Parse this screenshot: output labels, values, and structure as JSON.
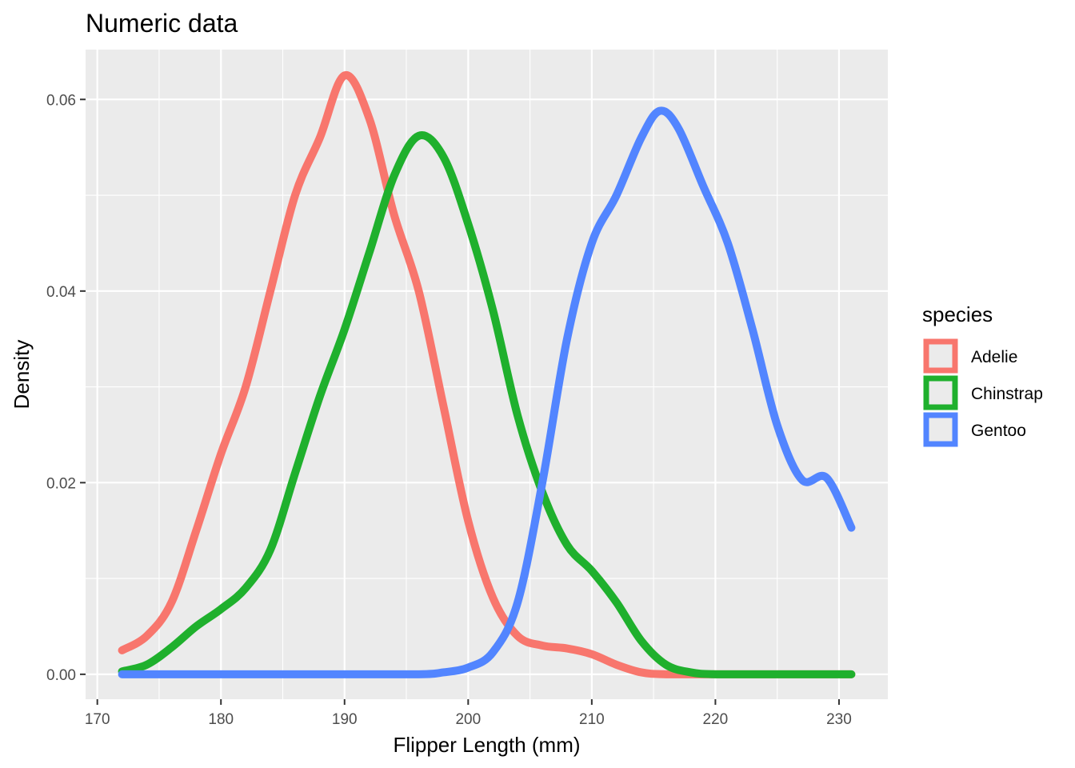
{
  "chart_data": {
    "type": "line",
    "title": "Numeric data",
    "xlabel": "Flipper Length (mm)",
    "ylabel": "Density",
    "xlim": [
      169.05,
      233.95
    ],
    "ylim": [
      -0.0026,
      0.0652
    ],
    "x_ticks": [
      170,
      180,
      190,
      200,
      210,
      220,
      230
    ],
    "x_tick_labels": [
      "170",
      "180",
      "190",
      "200",
      "210",
      "220",
      "230"
    ],
    "y_ticks": [
      0.0,
      0.02,
      0.04,
      0.06
    ],
    "y_tick_labels": [
      "0.00",
      "0.02",
      "0.04",
      "0.06"
    ],
    "grid": true,
    "legend": {
      "title": "species",
      "position": "right"
    },
    "series": [
      {
        "name": "Adelie",
        "color": "#F8766D",
        "points": [
          [
            172,
            0.0025
          ],
          [
            174,
            0.004
          ],
          [
            176,
            0.0075
          ],
          [
            178,
            0.015
          ],
          [
            180,
            0.023
          ],
          [
            182,
            0.03
          ],
          [
            184,
            0.04
          ],
          [
            186,
            0.05
          ],
          [
            188,
            0.056
          ],
          [
            190,
            0.0625
          ],
          [
            192,
            0.058
          ],
          [
            194,
            0.048
          ],
          [
            196,
            0.04
          ],
          [
            198,
            0.028
          ],
          [
            200,
            0.016
          ],
          [
            202,
            0.008
          ],
          [
            204,
            0.004
          ],
          [
            206,
            0.003
          ],
          [
            208,
            0.0027
          ],
          [
            210,
            0.0021
          ],
          [
            212,
            0.001
          ],
          [
            214,
            0.0002
          ],
          [
            216,
            0.0
          ],
          [
            220,
            0.0
          ],
          [
            224,
            0.0
          ],
          [
            228,
            0.0
          ],
          [
            231,
            0.0
          ]
        ]
      },
      {
        "name": "Chinstrap",
        "color": "#1FB02D",
        "points": [
          [
            172,
            0.0003
          ],
          [
            174,
            0.001
          ],
          [
            176,
            0.0028
          ],
          [
            178,
            0.005
          ],
          [
            180,
            0.0068
          ],
          [
            182,
            0.009
          ],
          [
            184,
            0.013
          ],
          [
            186,
            0.021
          ],
          [
            188,
            0.029
          ],
          [
            190,
            0.036
          ],
          [
            192,
            0.044
          ],
          [
            194,
            0.052
          ],
          [
            196,
            0.0562
          ],
          [
            198,
            0.054
          ],
          [
            200,
            0.047
          ],
          [
            202,
            0.038
          ],
          [
            204,
            0.027
          ],
          [
            206,
            0.019
          ],
          [
            208,
            0.0135
          ],
          [
            210,
            0.0108
          ],
          [
            212,
            0.0075
          ],
          [
            214,
            0.0035
          ],
          [
            216,
            0.001
          ],
          [
            218,
            0.0002
          ],
          [
            220,
            0.0
          ],
          [
            224,
            0.0
          ],
          [
            228,
            0.0
          ],
          [
            231,
            0.0
          ]
        ]
      },
      {
        "name": "Gentoo",
        "color": "#5285FF",
        "points": [
          [
            172,
            0.0
          ],
          [
            180,
            0.0
          ],
          [
            190,
            0.0
          ],
          [
            196,
            0.0
          ],
          [
            198,
            0.0002
          ],
          [
            200,
            0.0007
          ],
          [
            202,
            0.0023
          ],
          [
            204,
            0.0075
          ],
          [
            206,
            0.02
          ],
          [
            208,
            0.035
          ],
          [
            210,
            0.045
          ],
          [
            212,
            0.05
          ],
          [
            214,
            0.056
          ],
          [
            215.5,
            0.0588
          ],
          [
            217,
            0.057
          ],
          [
            219,
            0.051
          ],
          [
            221,
            0.045
          ],
          [
            223,
            0.036
          ],
          [
            225,
            0.026
          ],
          [
            227,
            0.0203
          ],
          [
            229,
            0.0205
          ],
          [
            231,
            0.0153
          ]
        ]
      }
    ]
  }
}
